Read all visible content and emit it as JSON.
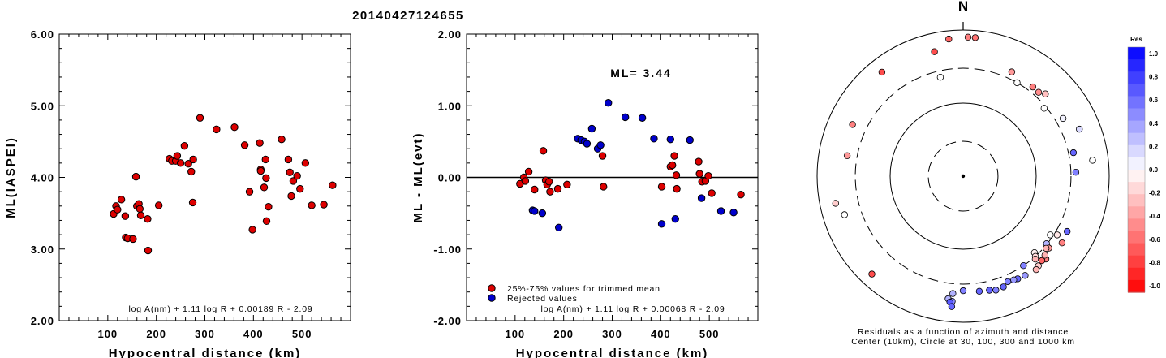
{
  "figure_title": "20140427124655",
  "chart_data": [
    {
      "type": "scatter",
      "ylabel": "ML(IASPEI)",
      "xlabel": "Hypocentral distance (km)",
      "xlim": [
        0,
        600
      ],
      "ylim": [
        2.0,
        6.0
      ],
      "x_ticks": [
        "100",
        "200",
        "300",
        "400",
        "500"
      ],
      "y_ticks": [
        "2.00",
        "3.00",
        "4.00",
        "5.00",
        "6.00"
      ],
      "formula": "log A(nm) + 1.11 log R + 0.00189 R - 2.09",
      "marker_color": "#dd0000",
      "points": [
        [
          112,
          3.49
        ],
        [
          117,
          3.6
        ],
        [
          120,
          3.55
        ],
        [
          128,
          3.69
        ],
        [
          136,
          3.46
        ],
        [
          137,
          3.16
        ],
        [
          141,
          3.15
        ],
        [
          152,
          3.14
        ],
        [
          158,
          4.01
        ],
        [
          160,
          3.6
        ],
        [
          164,
          3.63
        ],
        [
          166,
          3.56
        ],
        [
          168,
          3.47
        ],
        [
          182,
          3.42
        ],
        [
          183,
          2.98
        ],
        [
          205,
          3.61
        ],
        [
          227,
          4.26
        ],
        [
          232,
          4.23
        ],
        [
          240,
          4.23
        ],
        [
          243,
          4.3
        ],
        [
          250,
          4.2
        ],
        [
          258,
          4.44
        ],
        [
          266,
          4.19
        ],
        [
          272,
          4.08
        ],
        [
          275,
          3.65
        ],
        [
          276,
          4.25
        ],
        [
          290,
          4.83
        ],
        [
          324,
          4.67
        ],
        [
          361,
          4.7
        ],
        [
          382,
          4.45
        ],
        [
          392,
          3.8
        ],
        [
          398,
          3.27
        ],
        [
          413,
          4.48
        ],
        [
          415,
          4.11
        ],
        [
          415,
          4.09
        ],
        [
          422,
          3.86
        ],
        [
          425,
          4.25
        ],
        [
          426,
          3.99
        ],
        [
          427,
          3.39
        ],
        [
          431,
          3.59
        ],
        [
          458,
          4.53
        ],
        [
          472,
          4.25
        ],
        [
          475,
          4.07
        ],
        [
          478,
          3.74
        ],
        [
          482,
          3.95
        ],
        [
          490,
          4.02
        ],
        [
          496,
          3.84
        ],
        [
          507,
          4.2
        ],
        [
          520,
          3.61
        ],
        [
          545,
          3.62
        ],
        [
          563,
          3.89
        ]
      ]
    },
    {
      "type": "scatter",
      "ylabel": "ML - ML(evt)",
      "xlabel": "Hypocentral distance (km)",
      "xlim": [
        0,
        600
      ],
      "ylim": [
        -2.0,
        2.0
      ],
      "x_ticks": [
        "100",
        "200",
        "300",
        "400",
        "500"
      ],
      "y_ticks": [
        "-2.00",
        "-1.00",
        "0.00",
        "1.00",
        "2.00"
      ],
      "reference_line": 0.0,
      "annotation": "ML= 3.44",
      "formula": "log A(nm) + 1.11 log R + 0.00068 R - 2.09",
      "series": [
        {
          "name": "25%-75% values for trimmed mean",
          "color": "#dd0000",
          "points": [
            [
              110,
              -0.09
            ],
            [
              118,
              0.0
            ],
            [
              121,
              -0.05
            ],
            [
              128,
              0.08
            ],
            [
              140,
              -0.17
            ],
            [
              158,
              0.37
            ],
            [
              163,
              -0.04
            ],
            [
              166,
              -0.1
            ],
            [
              170,
              -0.06
            ],
            [
              172,
              -0.2
            ],
            [
              188,
              -0.16
            ],
            [
              207,
              -0.1
            ],
            [
              280,
              0.3
            ],
            [
              282,
              -0.13
            ],
            [
              402,
              -0.13
            ],
            [
              420,
              0.15
            ],
            [
              424,
              0.17
            ],
            [
              428,
              0.3
            ],
            [
              432,
              0.03
            ],
            [
              433,
              -0.16
            ],
            [
              478,
              0.22
            ],
            [
              480,
              0.05
            ],
            [
              485,
              -0.06
            ],
            [
              492,
              -0.05
            ],
            [
              498,
              0.02
            ],
            [
              505,
              -0.22
            ],
            [
              565,
              -0.24
            ]
          ]
        },
        {
          "name": "Rejected values",
          "color": "#0000cc",
          "points": [
            [
              136,
              -0.46
            ],
            [
              140,
              -0.47
            ],
            [
              156,
              -0.5
            ],
            [
              190,
              -0.7
            ],
            [
              229,
              0.54
            ],
            [
              236,
              0.52
            ],
            [
              243,
              0.5
            ],
            [
              248,
              0.47
            ],
            [
              258,
              0.68
            ],
            [
              270,
              0.4
            ],
            [
              276,
              0.45
            ],
            [
              292,
              1.04
            ],
            [
              327,
              0.84
            ],
            [
              362,
              0.83
            ],
            [
              386,
              0.54
            ],
            [
              402,
              -0.65
            ],
            [
              420,
              0.53
            ],
            [
              430,
              -0.58
            ],
            [
              460,
              0.52
            ],
            [
              484,
              -0.29
            ],
            [
              524,
              -0.47
            ],
            [
              550,
              -0.49
            ]
          ]
        }
      ]
    },
    {
      "type": "scatter",
      "subtype": "polar residual map",
      "north_label": "N",
      "caption_line1": "Residuals as a function of azimuth and distance",
      "caption_line2": "Center (10km), Circle at 30, 100, 300 and 1000 km",
      "colorbar_title": "Res",
      "colorbar_ticks": [
        "1.0",
        "0.8",
        "0.6",
        "0.4",
        "0.2",
        "0.0",
        "-0.2",
        "-0.4",
        "-0.6",
        "-0.8",
        "-1.0"
      ],
      "colorbar_range": [
        -1.0,
        1.0
      ],
      "positive_color": "#0000ff",
      "negative_color": "#ff0000",
      "stations_azimuth_distkm_res": [
        [
          2,
          800,
          -0.5
        ],
        [
          5,
          800,
          -0.55
        ],
        [
          354,
          770,
          -0.6
        ],
        [
          347,
          560,
          -0.7
        ],
        [
          347,
          245,
          0.0
        ],
        [
          25,
          375,
          -0.4
        ],
        [
          30,
          300,
          0.0
        ],
        [
          38,
          355,
          -0.5
        ],
        [
          42,
          350,
          -0.45
        ],
        [
          45,
          390,
          -0.25
        ],
        [
          50,
          280,
          0.0
        ],
        [
          60,
          380,
          0.05
        ],
        [
          68,
          520,
          0.15
        ],
        [
          78,
          350,
          0.6
        ],
        [
          83,
          610,
          0.0
        ],
        [
          88,
          350,
          0.5
        ],
        [
          118,
          410,
          0.6
        ],
        [
          122,
          330,
          -0.1
        ],
        [
          124,
          275,
          0.0
        ],
        [
          124,
          430,
          -0.5
        ],
        [
          129,
          295,
          0.3
        ],
        [
          130,
          340,
          -0.4
        ],
        [
          131,
          320,
          -0.3
        ],
        [
          135,
          400,
          -0.5
        ],
        [
          134,
          360,
          -0.3
        ],
        [
          137,
          270,
          -0.05
        ],
        [
          137,
          380,
          -0.6
        ],
        [
          138,
          300,
          -0.15
        ],
        [
          139,
          320,
          -0.3
        ],
        [
          140,
          400,
          -0.2
        ],
        [
          142,
          420,
          -0.3
        ],
        [
          146,
          300,
          0.5
        ],
        [
          148,
          400,
          0.4
        ],
        [
          152,
          390,
          0.6
        ],
        [
          154,
          380,
          0.4
        ],
        [
          157,
          370,
          0.5
        ],
        [
          160,
          410,
          0.6
        ],
        [
          164,
          420,
          0.5
        ],
        [
          167,
          400,
          0.6
        ],
        [
          172,
          390,
          0.6
        ],
        [
          180,
          370,
          0.5
        ],
        [
          185,
          410,
          0.3
        ],
        [
          187,
          490,
          0.3
        ],
        [
          185,
          525,
          0.45
        ],
        [
          186,
          540,
          0.65
        ],
        [
          185,
          620,
          0.6
        ],
        [
          223,
          680,
          -0.7
        ],
        [
          252,
          510,
          0.0
        ],
        [
          258,
          610,
          -0.2
        ],
        [
          280,
          410,
          -0.4
        ],
        [
          295,
          470,
          -0.5
        ],
        [
          322,
          640,
          -0.7
        ]
      ]
    }
  ]
}
